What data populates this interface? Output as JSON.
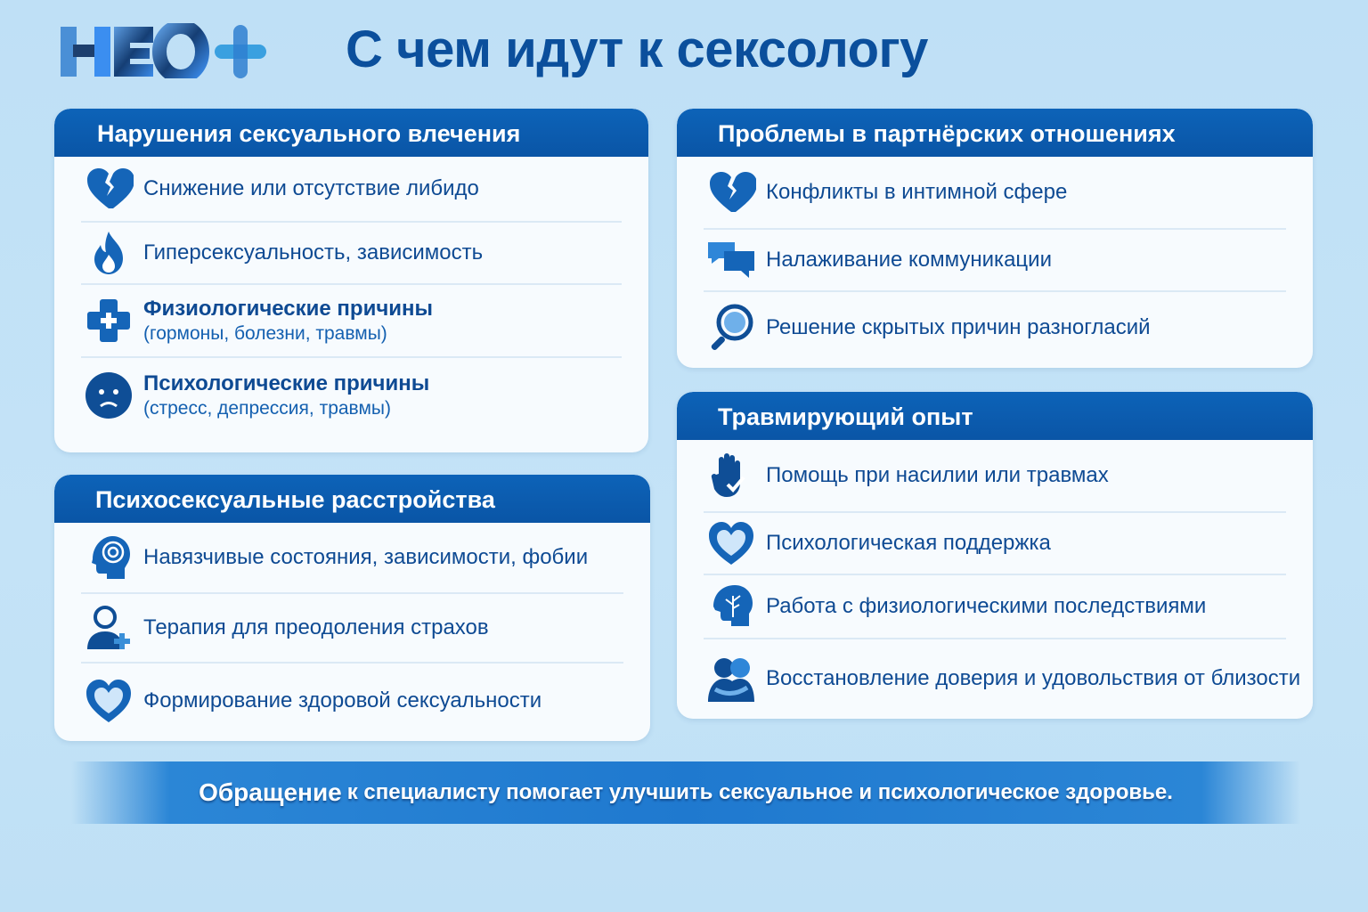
{
  "logo": {
    "text": "НЕО+"
  },
  "title": "С чем идут к сексологу",
  "colors": {
    "header": "#0a5cb0",
    "text": "#0e4a93",
    "icon": "#1565b8",
    "background": "#c0e1f6"
  },
  "cards": [
    {
      "id": "c1",
      "title": "Нарушения сексуального влечения",
      "rowh": [
        74,
        70,
        82,
        84
      ],
      "items": [
        {
          "icon": "broken-heart-icon",
          "text": "Снижение или отсутствие либидо"
        },
        {
          "icon": "flame-icon",
          "text": "Гиперсексуальность, зависимость"
        },
        {
          "icon": "medical-cross-icon",
          "text": "Физиологические причины",
          "sub": "(гормоны, болезни, травмы)"
        },
        {
          "icon": "sad-face-icon",
          "text": "Психологические причины",
          "sub": "(стресс, депрессия, травмы)"
        }
      ]
    },
    {
      "id": "c2",
      "title": "Психосексуальные расстройства",
      "rowh": [
        80,
        78,
        84
      ],
      "items": [
        {
          "icon": "spiral-head-icon",
          "text": "Навязчивые состояния, зависимости, фобии"
        },
        {
          "icon": "person-plus-icon",
          "text": "Терапия для преодоления страхов"
        },
        {
          "icon": "heart-icon",
          "text": "Формирование здоровой сексуальности"
        }
      ]
    },
    {
      "id": "c3",
      "title": "Проблемы в партнёрских отношениях",
      "rowh": [
        82,
        70,
        80
      ],
      "items": [
        {
          "icon": "broken-heart-icon",
          "text": "Конфликты в интимной сфере"
        },
        {
          "icon": "chat-bubbles-icon",
          "text": "Налаживание коммуникации"
        },
        {
          "icon": "magnifier-head-icon",
          "text": "Решение скрытых причин разногласий"
        }
      ]
    },
    {
      "id": "c4",
      "title": "Травмирующий опыт",
      "rowh": [
        82,
        70,
        72,
        88
      ],
      "items": [
        {
          "icon": "hand-icon",
          "text": "Помощь при насилии или травмах"
        },
        {
          "icon": "heart-icon",
          "text": "Психологическая поддержка"
        },
        {
          "icon": "brain-tree-icon",
          "text": "Работа с физиологическими последствиями"
        },
        {
          "icon": "embrace-icon",
          "text": "Восстановление доверия и удовольствия от близости"
        }
      ]
    }
  ],
  "footer": {
    "lead": "Обращение",
    "text": "к специалисту помогает улучшить сексуальное и психологическое здоровье."
  }
}
